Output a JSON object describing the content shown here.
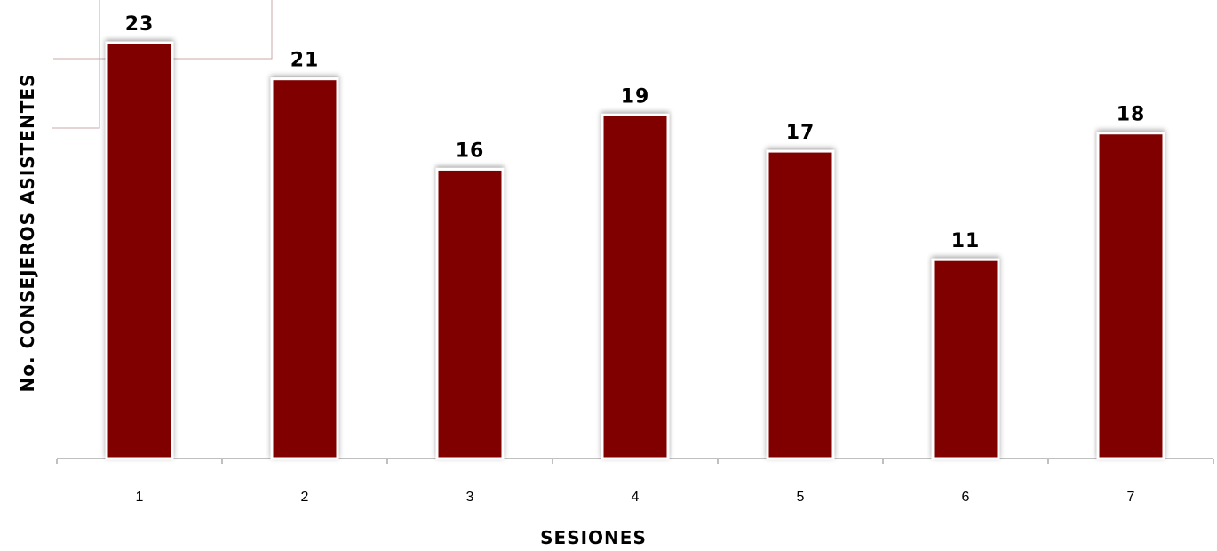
{
  "chart_data": {
    "type": "bar",
    "categories": [
      "1",
      "2",
      "3",
      "4",
      "5",
      "6",
      "7"
    ],
    "values": [
      23,
      21,
      16,
      19,
      17,
      11,
      18
    ],
    "title": "",
    "xlabel": "SESIONES",
    "ylabel": "No. CONSEJEROS ASISTENTES",
    "ylim": [
      0,
      23
    ],
    "grid": false,
    "legend": "none",
    "bar_color": "#800000",
    "bar_outline_color": "#ffffff",
    "axis_color": "#808080"
  }
}
